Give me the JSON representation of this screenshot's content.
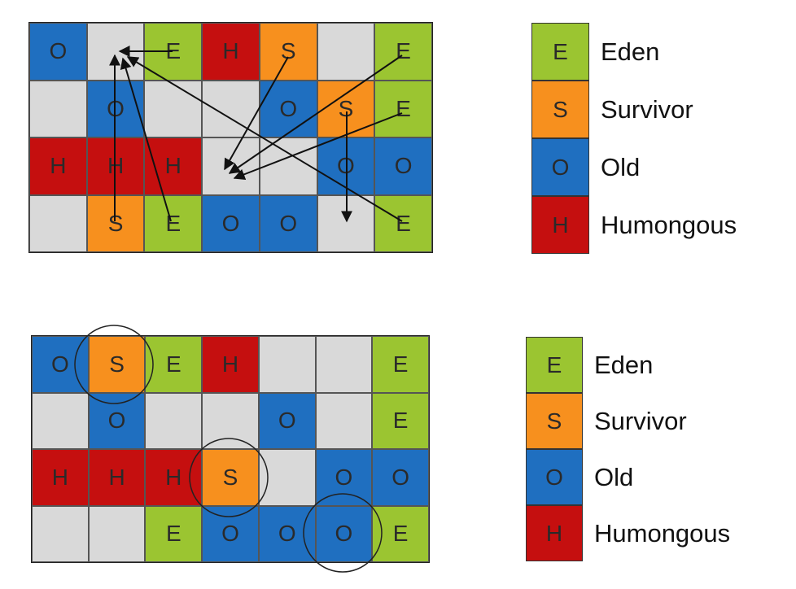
{
  "colors": {
    "E": "#9bc531",
    "S": "#f7901e",
    "O": "#1f6fc0",
    "H": "#c50f0f",
    "empty": "#d9d9d9"
  },
  "diagram_before": {
    "rows": [
      [
        "O",
        "",
        "E",
        "H",
        "S",
        "",
        "E"
      ],
      [
        "",
        "O",
        "",
        "",
        "O",
        "S",
        "E"
      ],
      [
        "H",
        "H",
        "H",
        "",
        "",
        "O",
        "O"
      ],
      [
        "",
        "S",
        "E",
        "O",
        "O",
        "",
        "E"
      ]
    ]
  },
  "diagram_after": {
    "rows": [
      [
        "O",
        "S",
        "E",
        "H",
        "",
        "",
        "E"
      ],
      [
        "",
        "O",
        "",
        "",
        "O",
        "",
        "E"
      ],
      [
        "H",
        "H",
        "H",
        "S",
        "",
        "O",
        "O"
      ],
      [
        "",
        "",
        "E",
        "O",
        "O",
        "O",
        "E"
      ]
    ]
  },
  "legend_top": [
    {
      "key": "E",
      "label": "Eden"
    },
    {
      "key": "S",
      "label": "Survivor"
    },
    {
      "key": "O",
      "label": "Old"
    },
    {
      "key": "H",
      "label": "Humongous"
    }
  ],
  "legend_bottom": [
    {
      "key": "E",
      "label": "Eden"
    },
    {
      "key": "S",
      "label": "Survivor"
    },
    {
      "key": "O",
      "label": "Old"
    },
    {
      "key": "H",
      "label": "Humongous"
    }
  ]
}
